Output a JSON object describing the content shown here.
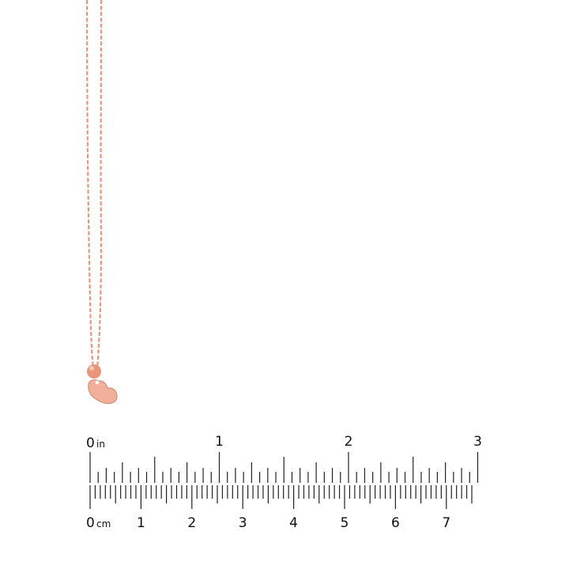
{
  "product": {
    "item": "heart pendant necklace",
    "metal_color": "#e8957a",
    "metal_highlight": "#f6c8b4",
    "metal_shadow": "#c96f55"
  },
  "ruler": {
    "inch_unit": "in",
    "cm_unit": "cm",
    "inch_labels": [
      "0",
      "1",
      "2",
      "3"
    ],
    "cm_labels": [
      "0",
      "1",
      "2",
      "3",
      "4",
      "5",
      "6",
      "7"
    ],
    "inch_max": 3,
    "cm_max": 7.5,
    "tick_color": "#222222"
  }
}
